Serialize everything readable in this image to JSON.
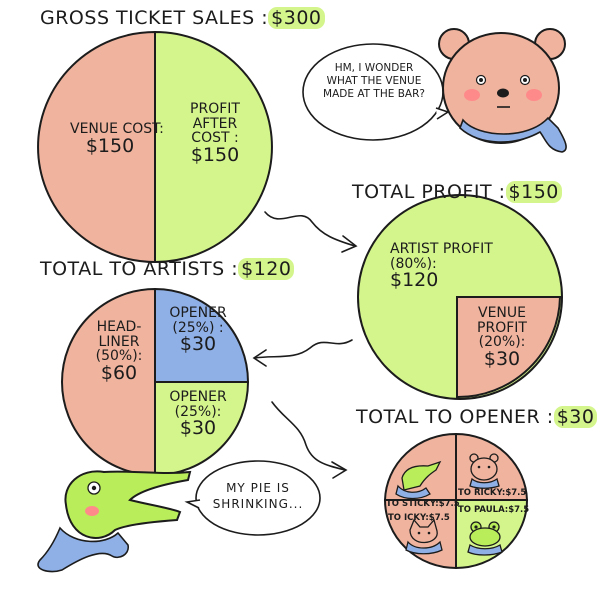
{
  "titles": {
    "gross": {
      "label": "GROSS TICKET SALES :",
      "value": "$300"
    },
    "profit": {
      "label": "TOTAL PROFIT :",
      "value": "$150"
    },
    "artists": {
      "label": "TOTAL TO ARTISTS :",
      "value": "$120"
    },
    "opener": {
      "label": "TOTAL TO OPENER :",
      "value": "$30"
    }
  },
  "speech": {
    "bear": "HM, I WONDER\nWHAT THE VENUE\nMADE AT THE BAR?",
    "croc": "MY PIE IS\nSHRINKING..."
  },
  "colors": {
    "salmon": "#efb39e",
    "lime": "#d4f58c",
    "blue": "#8fb0e6",
    "outline": "#1c1c1c",
    "scarf": "#8fb0e6",
    "bear": "#efb39e",
    "croc": "#b9ee5a"
  },
  "icons": [
    "bear",
    "crocodile",
    "cat",
    "frog",
    "arrow"
  ],
  "chart_data": [
    {
      "type": "pie",
      "title": "GROSS TICKET SALES : $300",
      "slices": [
        {
          "label": "VENUE COST:",
          "value": 150,
          "value_label": "$150",
          "color": "#efb39e"
        },
        {
          "label": "PROFIT AFTER COST :",
          "value": 150,
          "value_label": "$150",
          "color": "#d4f58c"
        }
      ]
    },
    {
      "type": "pie",
      "title": "TOTAL PROFIT : $150",
      "slices": [
        {
          "label": "ARTIST PROFIT (80%):",
          "value": 120,
          "value_label": "$120",
          "color": "#d4f58c"
        },
        {
          "label": "VENUE PROFIT (20%):",
          "value": 30,
          "value_label": "$30",
          "color": "#efb39e"
        }
      ]
    },
    {
      "type": "pie",
      "title": "TOTAL TO ARTISTS : $120",
      "slices": [
        {
          "label": "HEAD-LINER (50%):",
          "value": 60,
          "value_label": "$60",
          "color": "#efb39e"
        },
        {
          "label": "OPENER (25%) :",
          "value": 30,
          "value_label": "$30",
          "color": "#8fb0e6"
        },
        {
          "label": "OPENER (25%):",
          "value": 30,
          "value_label": "$30",
          "color": "#d4f58c"
        }
      ]
    },
    {
      "type": "pie",
      "title": "TOTAL TO OPENER : $30",
      "slices": [
        {
          "label": "TO STICKY:",
          "value": 7.5,
          "value_label": "$7.5",
          "color": "#efb39e"
        },
        {
          "label": "TO RICKY:",
          "value": 7.5,
          "value_label": "$7.5",
          "color": "#efb39e"
        },
        {
          "label": "TO ICKY:",
          "value": 7.5,
          "value_label": "$7.5",
          "color": "#efb39e"
        },
        {
          "label": "TO PAULA:",
          "value": 7.5,
          "value_label": "$7.5",
          "color": "#d4f58c"
        }
      ]
    }
  ]
}
